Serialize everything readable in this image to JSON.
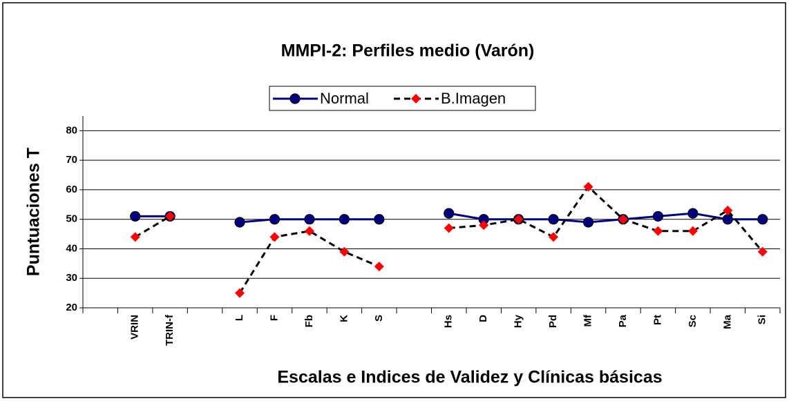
{
  "chart_data": {
    "type": "line",
    "title": "MMPI-2: Perfiles medio (Varón)",
    "xlabel": "Escalas e Indices de Validez y Clínicas básicas",
    "ylabel": "Puntuaciones T",
    "categories": [
      null,
      "VRIN",
      "TRIN-f",
      null,
      "L",
      "F",
      "Fb",
      "K",
      "S",
      null,
      "Hs",
      "D",
      "Hy",
      "Pd",
      "Mf",
      "Pa",
      "Pt",
      "Sc",
      "Ma",
      "Si"
    ],
    "series": [
      {
        "name": "Normal",
        "color": "#000080",
        "marker": "circle",
        "dashed": false,
        "values": [
          null,
          51,
          51,
          null,
          49,
          50,
          50,
          50,
          50,
          null,
          52,
          50,
          50,
          50,
          49,
          50,
          51,
          52,
          50,
          50
        ]
      },
      {
        "name": "B.Imagen",
        "color": "#ff0000",
        "marker": "diamond",
        "dashed": true,
        "values": [
          null,
          44,
          51,
          null,
          25,
          44,
          46,
          39,
          34,
          null,
          47,
          48,
          50,
          44,
          61,
          50,
          46,
          46,
          53,
          39
        ]
      }
    ],
    "ylim": [
      20,
      85
    ],
    "yticks": [
      20,
      30,
      40,
      50,
      60,
      70,
      80
    ],
    "grid": true,
    "legend": "top"
  }
}
